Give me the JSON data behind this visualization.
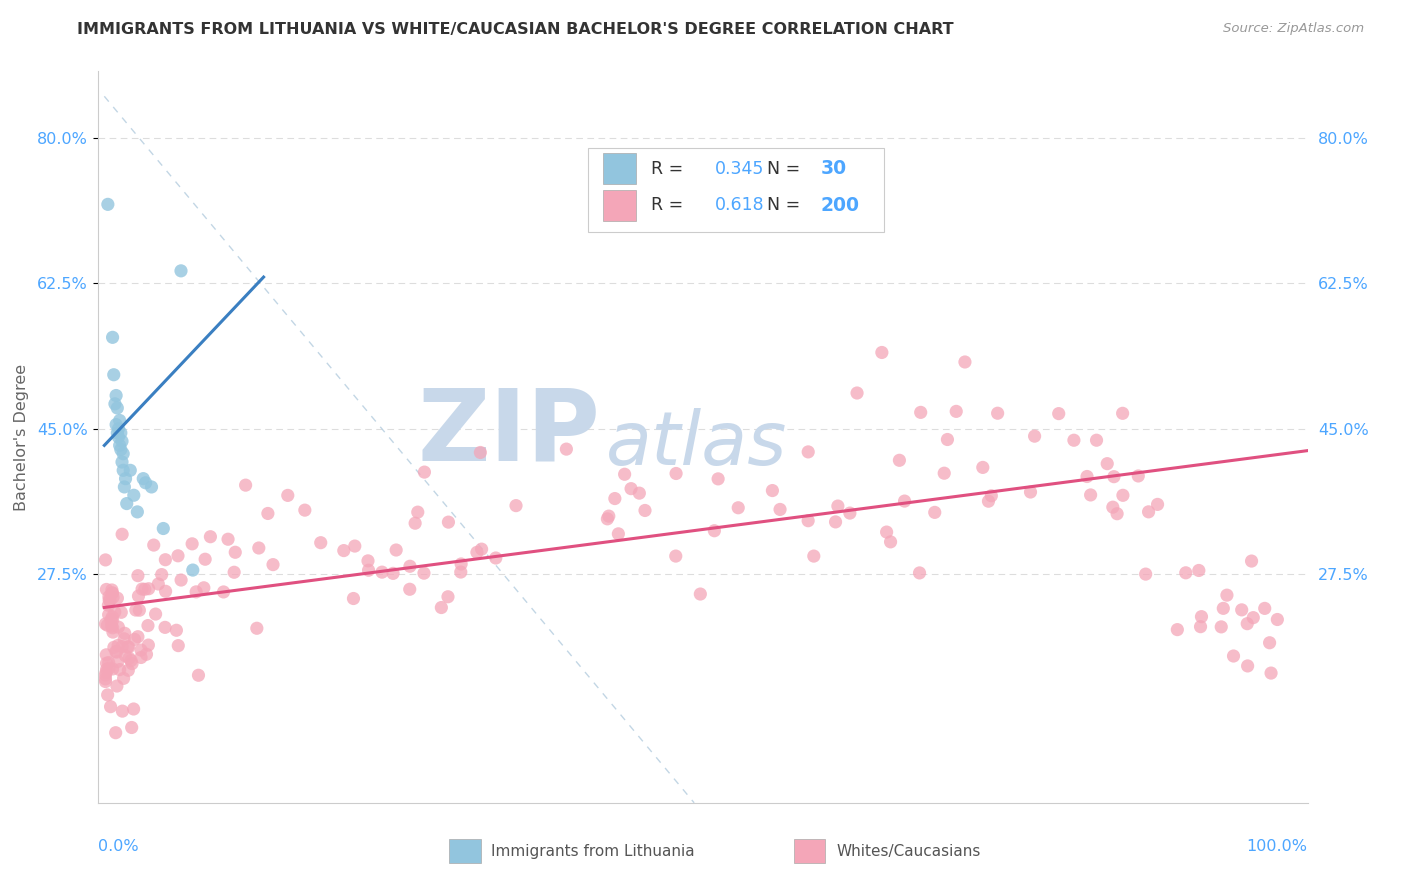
{
  "title": "IMMIGRANTS FROM LITHUANIA VS WHITE/CAUCASIAN BACHELOR'S DEGREE CORRELATION CHART",
  "source": "Source: ZipAtlas.com",
  "ylabel": "Bachelor's Degree",
  "ytick_labels": [
    "27.5%",
    "45.0%",
    "62.5%",
    "80.0%"
  ],
  "ytick_values": [
    0.275,
    0.45,
    0.625,
    0.8
  ],
  "ymin": 0.0,
  "ymax": 0.88,
  "xmin": -0.005,
  "xmax": 1.02,
  "legend_blue_R": "0.345",
  "legend_blue_N": "30",
  "legend_pink_R": "0.618",
  "legend_pink_N": "200",
  "blue_color": "#92c5de",
  "blue_edge_color": "#6baed6",
  "pink_color": "#f4a6b8",
  "pink_edge_color": "#e07090",
  "blue_line_color": "#3a7fc1",
  "pink_line_color": "#e05080",
  "diag_line_color": "#b8cfe0",
  "watermark_zip_color": "#c8d8ea",
  "watermark_atlas_color": "#c8d8ea",
  "grid_color": "#dddddd",
  "tick_color": "#4da6ff",
  "title_color": "#333333",
  "source_color": "#999999",
  "ylabel_color": "#666666"
}
